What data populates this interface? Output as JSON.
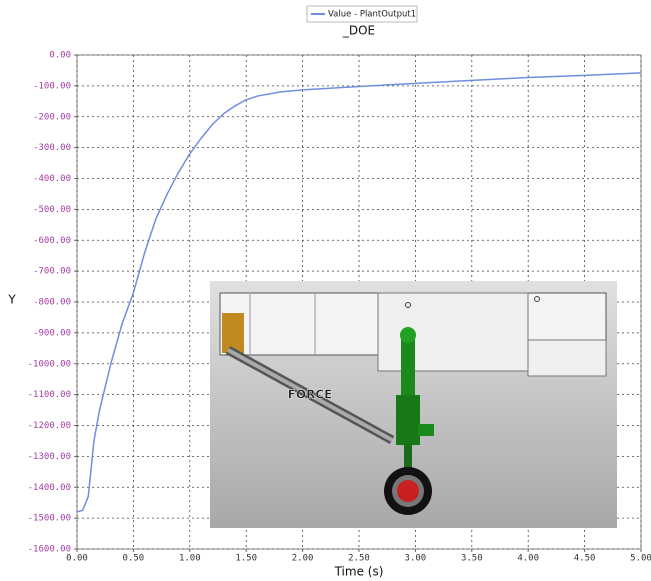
{
  "chart_data": {
    "type": "line",
    "title": "_DOE",
    "x_label": "Time (s)",
    "y_label": "Y",
    "x": [
      0,
      0.05,
      0.1,
      0.15,
      0.2,
      0.3,
      0.4,
      0.5,
      0.6,
      0.7,
      0.8,
      0.9,
      1.0,
      1.1,
      1.2,
      1.3,
      1.4,
      1.5,
      1.6,
      1.8,
      2.0,
      2.5,
      3.0,
      3.5,
      4.0,
      4.5,
      5.0
    ],
    "series": [
      {
        "name": "Value - PlantOutput1",
        "color": "#6e8fde",
        "values": [
          -1480,
          -1475,
          -1430,
          -1250,
          -1150,
          -1000,
          -870,
          -770,
          -640,
          -530,
          -450,
          -380,
          -320,
          -270,
          -225,
          -190,
          -165,
          -145,
          -133,
          -120,
          -113,
          -102,
          -92,
          -82,
          -73,
          -66,
          -58
        ]
      }
    ],
    "xlim": [
      0,
      5
    ],
    "xticks": [
      {
        "value": 0,
        "label": "0.00"
      },
      {
        "value": 0.5,
        "label": "0.50"
      },
      {
        "value": 1,
        "label": "1.00"
      },
      {
        "value": 1.5,
        "label": "1.50"
      },
      {
        "value": 2,
        "label": "2.00"
      },
      {
        "value": 2.5,
        "label": "2.50"
      },
      {
        "value": 3,
        "label": "3.00"
      },
      {
        "value": 3.5,
        "label": "3.50"
      },
      {
        "value": 4,
        "label": "4.00"
      },
      {
        "value": 4.5,
        "label": "4.50"
      },
      {
        "value": 5,
        "label": "5.00"
      }
    ],
    "ylim": [
      -1600,
      0
    ],
    "yticks": [
      {
        "value": 0,
        "label": "0.00"
      },
      {
        "value": -100,
        "label": "-100.00"
      },
      {
        "value": -200,
        "label": "-200.00"
      },
      {
        "value": -300,
        "label": "-300.00"
      },
      {
        "value": -400,
        "label": "-400.00"
      },
      {
        "value": -500,
        "label": "-500.00"
      },
      {
        "value": -600,
        "label": "-600.00"
      },
      {
        "value": -700,
        "label": "-700.00"
      },
      {
        "value": -800,
        "label": "-800.00"
      },
      {
        "value": -900,
        "label": "-900.00"
      },
      {
        "value": -1000,
        "label": "-1000.00"
      },
      {
        "value": -1100,
        "label": "-1100.00"
      },
      {
        "value": -1200,
        "label": "-1200.00"
      },
      {
        "value": -1300,
        "label": "-1300.00"
      },
      {
        "value": -1400,
        "label": "-1400.00"
      },
      {
        "value": -1500,
        "label": "-1500.00"
      },
      {
        "value": -1600,
        "label": "-1600.00"
      }
    ],
    "grid": true,
    "inset_label": "FORCE"
  }
}
